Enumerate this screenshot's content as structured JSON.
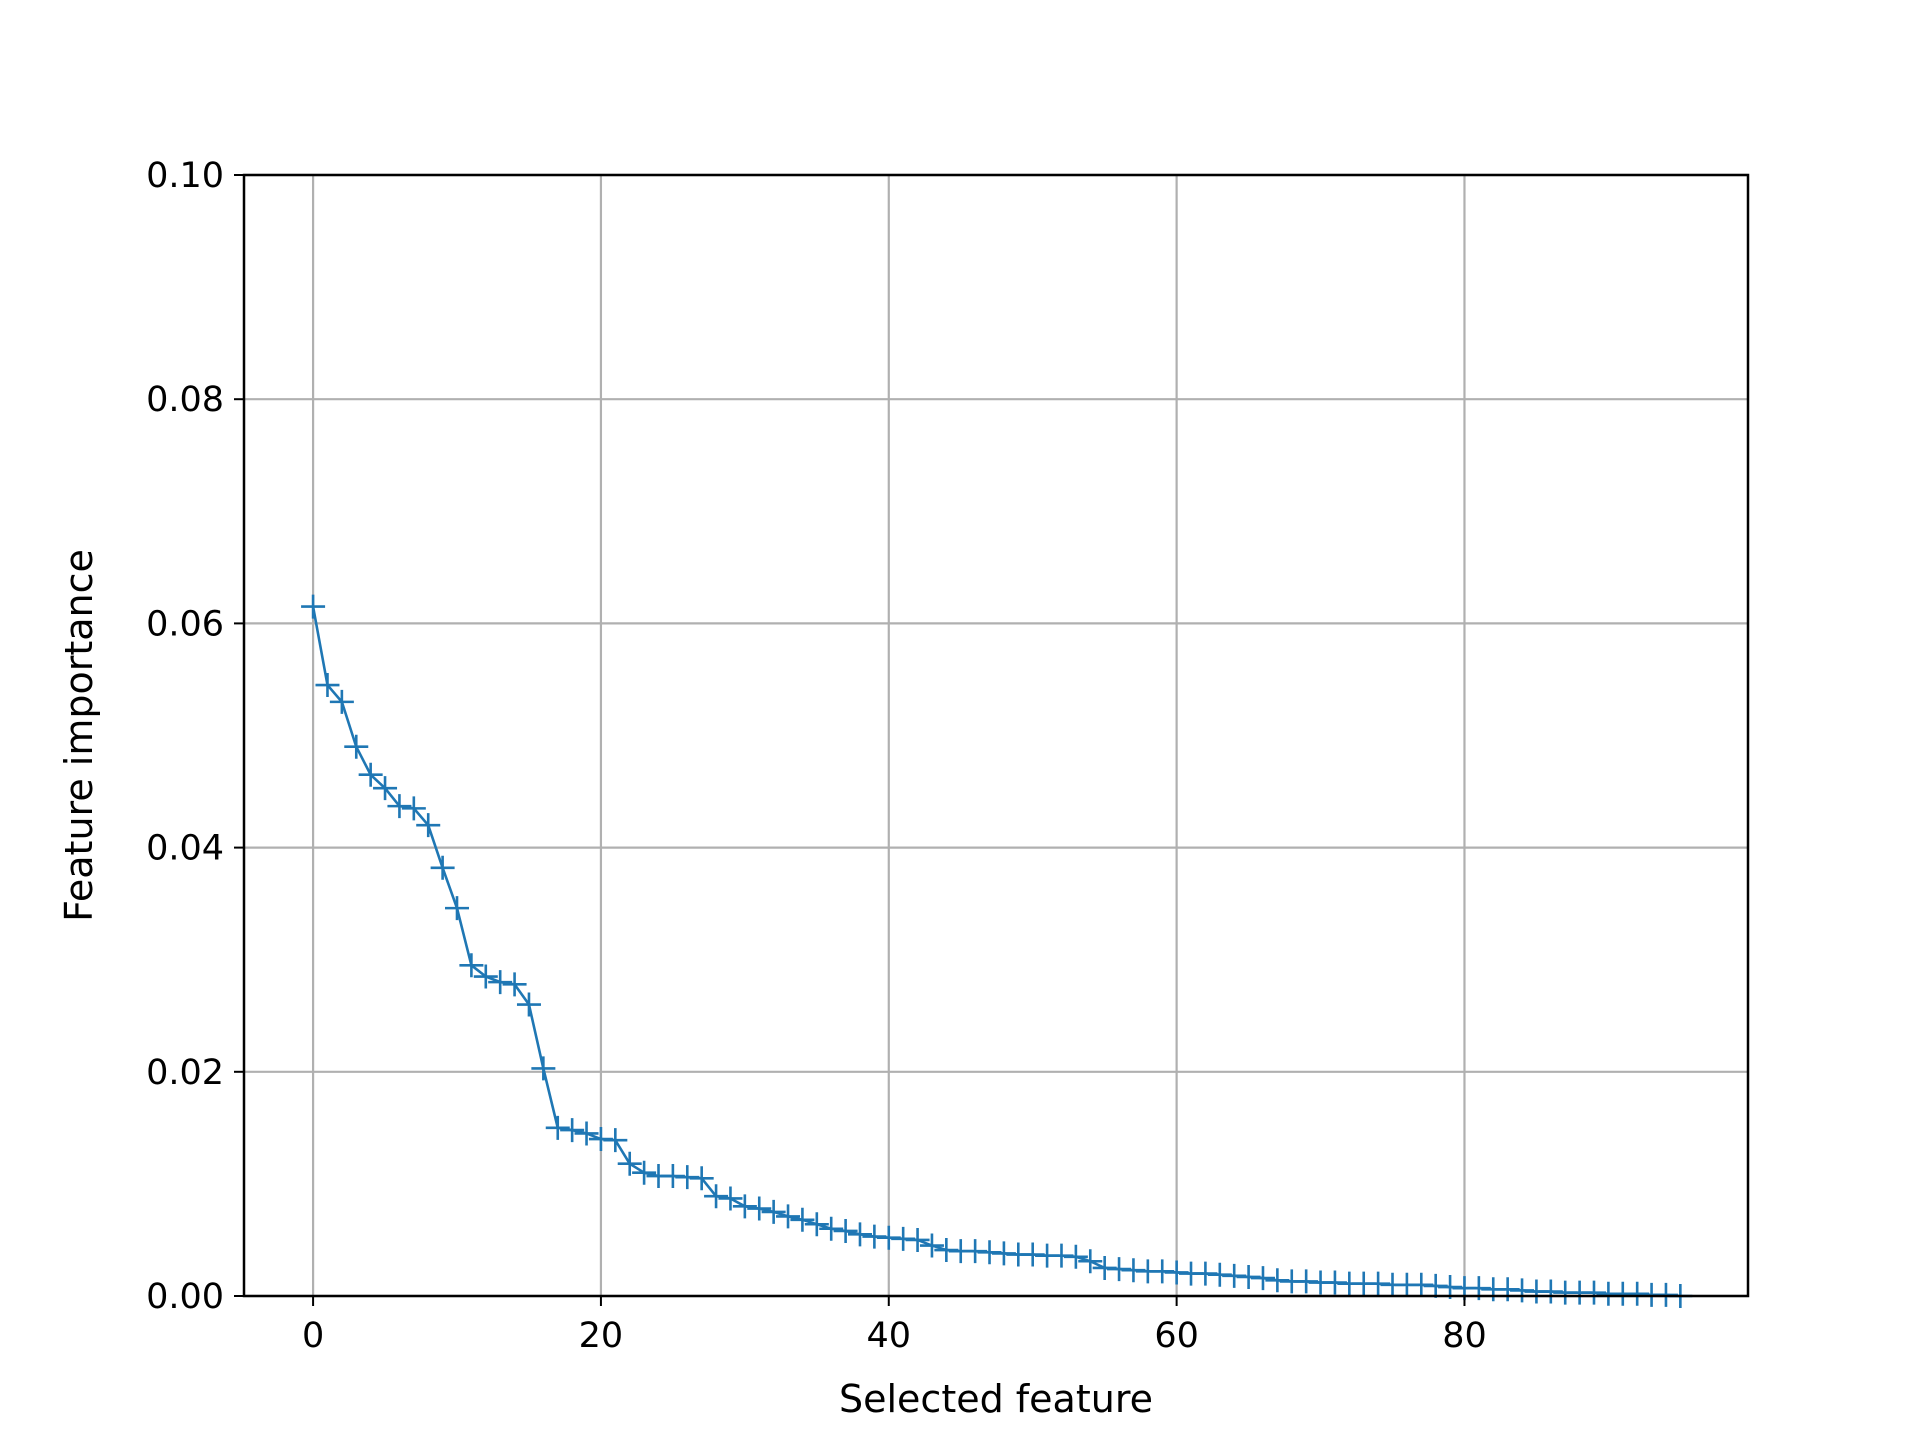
{
  "chart_data": {
    "type": "line",
    "title": "",
    "xlabel": "Selected feature",
    "ylabel": "Feature importance",
    "xlim": [
      -4.8,
      99.7
    ],
    "ylim": [
      0,
      0.1
    ],
    "x_ticks": [
      0,
      20,
      40,
      60,
      80
    ],
    "y_ticks": [
      0,
      0.02,
      0.04,
      0.06,
      0.08,
      0.1
    ],
    "x_tick_labels": [
      "0",
      "20",
      "40",
      "60",
      "80"
    ],
    "y_tick_labels": [
      "0.00",
      "0.02",
      "0.04",
      "0.06",
      "0.08",
      "0.10"
    ],
    "grid": true,
    "marker": "plus",
    "color": "#1f77b4",
    "series": [
      {
        "x": [
          0,
          1,
          2,
          3,
          4,
          5,
          6,
          7,
          8,
          9,
          10,
          11,
          12,
          13,
          14,
          15,
          16,
          17,
          18,
          19,
          20,
          21,
          22,
          23,
          24,
          25,
          26,
          27,
          28,
          29,
          30,
          31,
          32,
          33,
          34,
          35,
          36,
          37,
          38,
          39,
          40,
          41,
          42,
          43,
          44,
          45,
          46,
          47,
          48,
          49,
          50,
          51,
          52,
          53,
          54,
          55,
          56,
          57,
          58,
          59,
          60,
          61,
          62,
          63,
          64,
          65,
          66,
          67,
          68,
          69,
          70,
          71,
          72,
          73,
          74,
          75,
          76,
          77,
          78,
          79,
          80,
          81,
          82,
          83,
          84,
          85,
          86,
          87,
          88,
          89,
          90,
          91,
          92,
          93,
          94,
          95
        ],
        "values": [
          0.0615,
          0.0545,
          0.053,
          0.049,
          0.0465,
          0.0453,
          0.0437,
          0.0435,
          0.042,
          0.0382,
          0.0346,
          0.0295,
          0.0285,
          0.028,
          0.0278,
          0.026,
          0.0203,
          0.015,
          0.0148,
          0.0145,
          0.014,
          0.0139,
          0.0118,
          0.011,
          0.0107,
          0.0107,
          0.0106,
          0.0105,
          0.0089,
          0.0087,
          0.008,
          0.0078,
          0.0075,
          0.0071,
          0.0068,
          0.0064,
          0.006,
          0.0058,
          0.0055,
          0.0053,
          0.0052,
          0.0051,
          0.005,
          0.0045,
          0.0041,
          0.004,
          0.004,
          0.0039,
          0.0038,
          0.0037,
          0.0037,
          0.0036,
          0.0036,
          0.0035,
          0.0031,
          0.0025,
          0.0024,
          0.0023,
          0.0022,
          0.0022,
          0.0021,
          0.002,
          0.002,
          0.0019,
          0.0018,
          0.0017,
          0.0016,
          0.0014,
          0.0013,
          0.0013,
          0.0012,
          0.0012,
          0.0011,
          0.0011,
          0.0011,
          0.001,
          0.001,
          0.001,
          0.0009,
          0.0008,
          0.0007,
          0.0007,
          0.0006,
          0.0006,
          0.0005,
          0.0004,
          0.0004,
          0.0003,
          0.0003,
          0.0003,
          0.0002,
          0.0002,
          0.0002,
          0.0001,
          0.0001,
          0.0
        ]
      }
    ]
  }
}
